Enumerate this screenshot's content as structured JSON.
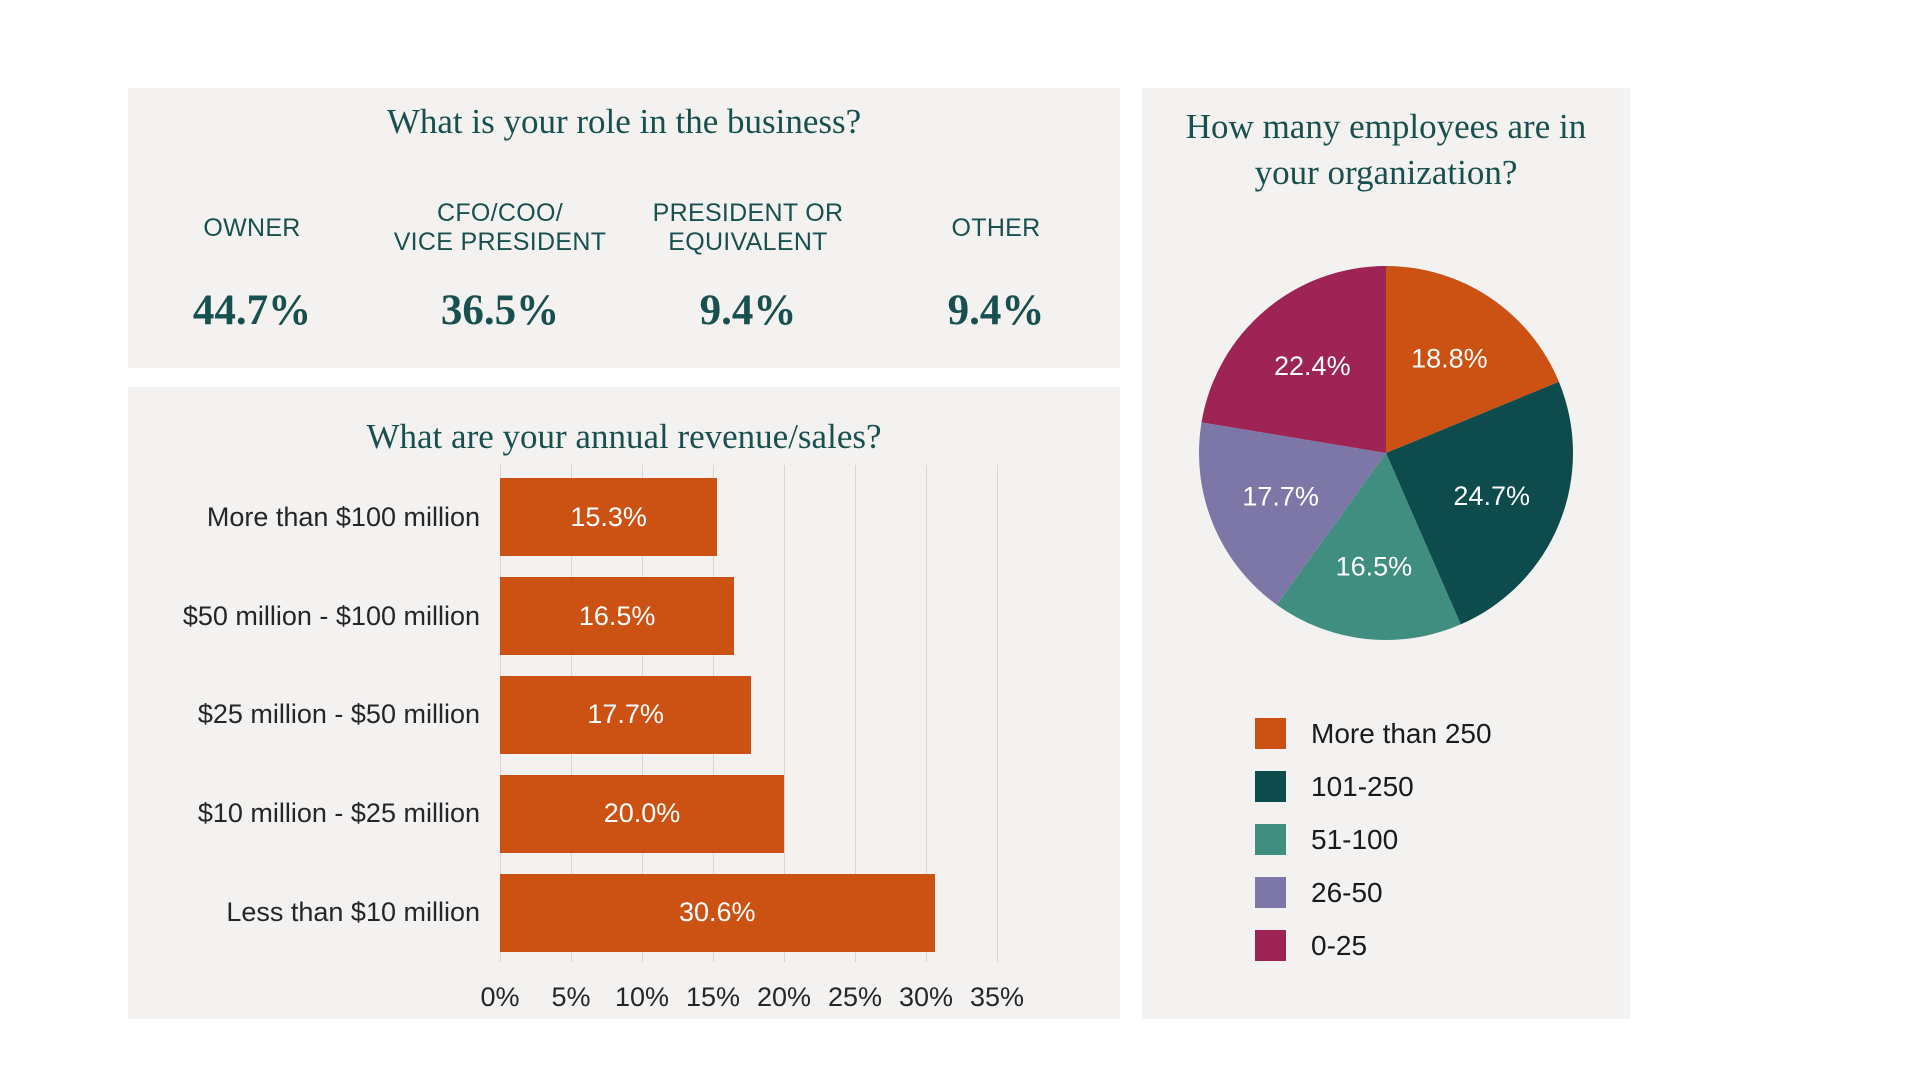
{
  "colors": {
    "page_bg": "#FFFFFF",
    "panel_bg": "#F4F2F0",
    "teal_text": "#17504E",
    "orange": "#CB5213",
    "dark_teal": "#0E4B4C",
    "teal": "#3F8E80",
    "purple": "#7D77A7",
    "maroon": "#9E2456",
    "gridline": "#D8D6D3",
    "text_dark": "#262626",
    "bar_value_text": "#FFFFFF",
    "pie_label_text": "#FFFFFF",
    "legend_text": "#1A1A1A"
  },
  "role_panel": {
    "title": "What is your role in the business?",
    "items": [
      {
        "label_lines": [
          "OWNER"
        ],
        "value": "44.7%"
      },
      {
        "label_lines": [
          "CFO/COO/",
          "VICE PRESIDENT"
        ],
        "value": "36.5%"
      },
      {
        "label_lines": [
          "PRESIDENT OR",
          "EQUIVALENT"
        ],
        "value": "9.4%"
      },
      {
        "label_lines": [
          "OTHER"
        ],
        "value": "9.4%"
      }
    ]
  },
  "revenue_panel": {
    "title": "What are your annual revenue/sales?",
    "categories": [
      "More than $100 million",
      "$50 million - $100 million",
      "$25 million - $50 million",
      "$10 million - $25 million",
      "Less than $10 million"
    ],
    "values": [
      15.3,
      16.5,
      17.7,
      20.0,
      30.6
    ],
    "bar_labels": [
      "15.3%",
      "16.5%",
      "17.7%",
      "20.0%",
      "30.6%"
    ],
    "axis_ticks": [
      "0%",
      "5%",
      "10%",
      "15%",
      "20%",
      "25%",
      "30%",
      "35%"
    ],
    "axis_max": 35
  },
  "employees_panel": {
    "title": "How many employees are in your organization?",
    "title_display": "How many employees are in\nyour organization?",
    "slices": [
      {
        "label": "More than 250",
        "value": 18.8,
        "display": "18.8%",
        "color": "#CB5213"
      },
      {
        "label": "101-250",
        "value": 24.7,
        "display": "24.7%",
        "color": "#0E4B4C"
      },
      {
        "label": "51-100",
        "value": 16.5,
        "display": "16.5%",
        "color": "#3F8E80"
      },
      {
        "label": "26-50",
        "value": 17.7,
        "display": "17.7%",
        "color": "#7D77A7"
      },
      {
        "label": "0-25",
        "value": 22.4,
        "display": "22.4%",
        "color": "#9E2456"
      }
    ]
  },
  "chart_data": [
    {
      "type": "table",
      "title": "What is your role in the business?",
      "categories": [
        "Owner",
        "CFO/COO/Vice President",
        "President or equivalent",
        "Other"
      ],
      "values": [
        44.7,
        36.5,
        9.4,
        9.4
      ],
      "unit": "%"
    },
    {
      "type": "bar",
      "orientation": "horizontal",
      "title": "What are your annual revenue/sales?",
      "categories": [
        "More than $100 million",
        "$50 million - $100 million",
        "$25 million - $50 million",
        "$10 million - $25 million",
        "Less than $10 million"
      ],
      "values": [
        15.3,
        16.5,
        17.7,
        20.0,
        30.6
      ],
      "data_labels": [
        "15.3%",
        "16.5%",
        "17.7%",
        "20.0%",
        "30.6%"
      ],
      "xlabel": "",
      "ylabel": "",
      "xlim": [
        0,
        35
      ],
      "x_ticks": [
        "0%",
        "5%",
        "10%",
        "15%",
        "20%",
        "25%",
        "30%",
        "35%"
      ],
      "grid": true,
      "bar_color": "#CB5213",
      "legend_position": "none"
    },
    {
      "type": "pie",
      "title": "How many employees are in your organization?",
      "labels": [
        "More than 250",
        "101-250",
        "51-100",
        "26-50",
        "0-25"
      ],
      "values": [
        18.8,
        24.7,
        16.5,
        17.7,
        22.4
      ],
      "data_labels": [
        "18.8%",
        "24.7%",
        "16.5%",
        "17.7%",
        "22.4%"
      ],
      "colors": [
        "#CB5213",
        "#0E4B4C",
        "#3F8E80",
        "#7D77A7",
        "#9E2456"
      ],
      "start_angle_deg": 0,
      "direction": "clockwise",
      "legend_position": "bottom-left"
    }
  ]
}
